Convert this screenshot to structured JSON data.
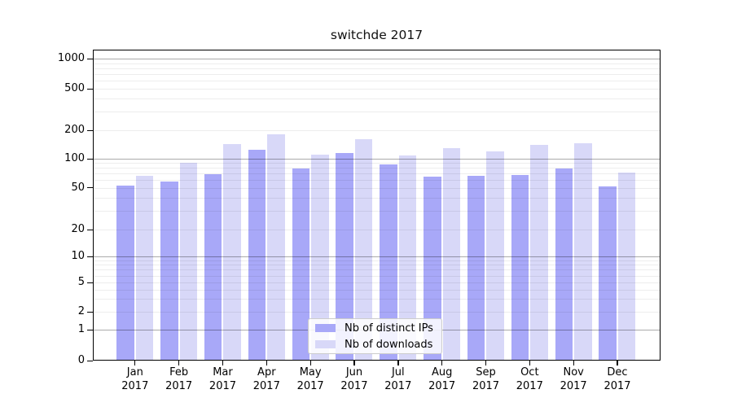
{
  "chart_data": {
    "type": "bar",
    "title": "switchde 2017",
    "categories": [
      {
        "month": "Jan",
        "year": "2017"
      },
      {
        "month": "Feb",
        "year": "2017"
      },
      {
        "month": "Mar",
        "year": "2017"
      },
      {
        "month": "Apr",
        "year": "2017"
      },
      {
        "month": "May",
        "year": "2017"
      },
      {
        "month": "Jun",
        "year": "2017"
      },
      {
        "month": "Jul",
        "year": "2017"
      },
      {
        "month": "Aug",
        "year": "2017"
      },
      {
        "month": "Sep",
        "year": "2017"
      },
      {
        "month": "Oct",
        "year": "2017"
      },
      {
        "month": "Nov",
        "year": "2017"
      },
      {
        "month": "Dec",
        "year": "2017"
      }
    ],
    "series": [
      {
        "name": "Nb of distinct IPs",
        "color": "#a8a8f8",
        "values": [
          52,
          58,
          69,
          124,
          79,
          116,
          87,
          65,
          67,
          68,
          79,
          51
        ]
      },
      {
        "name": "Nb of downloads",
        "color": "#d8d8f8",
        "values": [
          67,
          90,
          144,
          182,
          110,
          161,
          108,
          130,
          120,
          141,
          145,
          72
        ]
      }
    ],
    "y_axis": {
      "scale": "log",
      "ticks": [
        {
          "label": "1000",
          "value": 1000,
          "major": true
        },
        {
          "label": "500",
          "value": 500,
          "major": false
        },
        {
          "label": "200",
          "value": 200,
          "major": false
        },
        {
          "label": "100",
          "value": 100,
          "major": true
        },
        {
          "label": "50",
          "value": 50,
          "major": false
        },
        {
          "label": "20",
          "value": 20,
          "major": false
        },
        {
          "label": "10",
          "value": 10,
          "major": true
        },
        {
          "label": "5",
          "value": 5,
          "major": false
        },
        {
          "label": "2",
          "value": 2,
          "major": false
        },
        {
          "label": "1",
          "value": 1,
          "major": true
        },
        {
          "label": "0",
          "value": 0,
          "major": false
        }
      ]
    },
    "legend_position": "lower-center",
    "grid": "on"
  }
}
